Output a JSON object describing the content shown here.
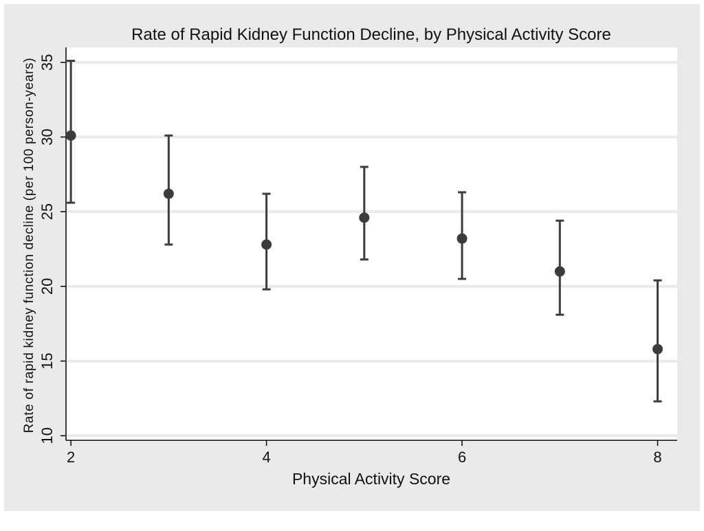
{
  "chart_data": {
    "type": "scatter",
    "title": "Rate of Rapid Kidney Function Decline, by Physical Activity Score",
    "xlabel": "Physical Activity Score",
    "ylabel": "Rate of rapid kidney function decline (per 100 person-years)",
    "xlim": [
      1.95,
      8.2
    ],
    "ylim": [
      9.6,
      36.0
    ],
    "xticks": [
      2,
      4,
      6,
      8
    ],
    "xtick_labels": [
      "2",
      "4",
      "6",
      "8"
    ],
    "yticks": [
      10,
      15,
      20,
      25,
      30,
      35
    ],
    "ytick_labels": [
      "10",
      "15",
      "20",
      "25",
      "30",
      "35"
    ],
    "grid": true,
    "legend": "none",
    "series": [
      {
        "x": [
          2,
          3,
          4,
          5,
          6,
          7,
          8
        ],
        "y": [
          30.1,
          26.2,
          22.8,
          24.6,
          23.2,
          21.0,
          15.8
        ],
        "lower": [
          25.6,
          22.8,
          19.8,
          21.8,
          20.5,
          18.1,
          12.3
        ],
        "upper": [
          35.1,
          30.1,
          26.2,
          28.0,
          26.3,
          24.4,
          20.4
        ]
      }
    ],
    "colors": {
      "background": "#eaeaea",
      "plot_area": "#ffffff",
      "grid": "#eaeaea",
      "markers": "#3c3c3c",
      "axis": "#000000"
    }
  }
}
